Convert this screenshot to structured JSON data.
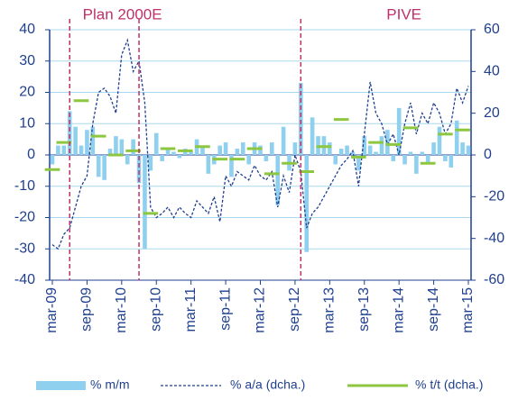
{
  "chart_data": {
    "type": "bar-line",
    "categories": [
      "mar-09",
      null,
      null,
      null,
      null,
      null,
      "sep-09",
      null,
      null,
      null,
      null,
      null,
      "mar-10",
      null,
      null,
      null,
      null,
      null,
      "sep-10",
      null,
      null,
      null,
      null,
      null,
      "mar-11",
      null,
      null,
      null,
      null,
      null,
      "sep-11",
      null,
      null,
      null,
      null,
      null,
      "mar-12",
      null,
      null,
      null,
      null,
      null,
      "sep-12",
      null,
      null,
      null,
      null,
      null,
      "mar-13",
      null,
      null,
      null,
      null,
      null,
      "sep-13",
      null,
      null,
      null,
      null,
      null,
      "mar-14",
      null,
      null,
      null,
      null,
      null,
      "sep-14",
      null,
      null,
      null,
      null,
      null,
      "mar-15"
    ],
    "series": [
      {
        "name": "% m/m",
        "kind": "bar",
        "color": "#8fd0ee",
        "values": [
          -3,
          3,
          3,
          14,
          9,
          3,
          8,
          9,
          -7,
          -8,
          2,
          6,
          5,
          -3,
          5,
          -9,
          -30,
          -5,
          7,
          -2,
          2,
          1,
          -1,
          2,
          1,
          5,
          3,
          -6,
          -3,
          3,
          4,
          -7,
          2,
          4,
          -3,
          4,
          3,
          -2,
          4,
          -16,
          9,
          -5,
          4,
          23,
          -31,
          12,
          6,
          6,
          4,
          -3,
          2,
          3,
          1,
          -5,
          6,
          3,
          1,
          6,
          8,
          -2,
          15,
          -3,
          1,
          -6,
          1,
          -3,
          4,
          9,
          -2,
          -4,
          11,
          4,
          3
        ]
      },
      {
        "name": "% a/a (dcha.)",
        "kind": "line",
        "axis": "y2",
        "color": "#1f3f8f",
        "values": [
          -43,
          -45,
          -38,
          -35,
          -25,
          -15,
          -10,
          15,
          30,
          32,
          28,
          20,
          48,
          55,
          40,
          45,
          25,
          -25,
          -30,
          -28,
          -25,
          -30,
          -25,
          -28,
          -30,
          -22,
          -25,
          -28,
          -20,
          -32,
          -10,
          -15,
          -8,
          -10,
          -12,
          -5,
          -10,
          -12,
          -8,
          -25,
          -10,
          -18,
          0,
          -8,
          -35,
          -28,
          -25,
          -20,
          -15,
          -10,
          -5,
          -2,
          2,
          -15,
          10,
          35,
          20,
          15,
          5,
          10,
          0,
          15,
          25,
          10,
          20,
          15,
          25,
          20,
          10,
          15,
          32,
          25,
          33
        ]
      },
      {
        "name": "% t/t (dcha.)",
        "kind": "step",
        "axis": "y2",
        "color": "#8dc63f",
        "values": [
          -7,
          null,
          6,
          null,
          null,
          26,
          null,
          null,
          9,
          null,
          null,
          0,
          null,
          null,
          2,
          null,
          null,
          -28,
          null,
          null,
          3,
          null,
          null,
          2,
          null,
          null,
          4,
          null,
          null,
          -2,
          null,
          null,
          -2,
          null,
          null,
          3,
          null,
          null,
          -9,
          null,
          null,
          -4,
          null,
          null,
          -8,
          null,
          null,
          4,
          null,
          null,
          17,
          null,
          null,
          -1,
          null,
          null,
          6,
          null,
          null,
          5,
          null,
          null,
          13,
          null,
          null,
          -4,
          null,
          null,
          10,
          null,
          null,
          12,
          null
        ]
      }
    ],
    "ylim": [
      -40,
      40
    ],
    "yticks": [
      -40,
      -30,
      -20,
      -10,
      0,
      10,
      20,
      30,
      40
    ],
    "y2lim": [
      -60,
      60
    ],
    "y2ticks": [
      -60,
      -40,
      -20,
      0,
      20,
      40,
      60
    ],
    "grid": true,
    "annotations": [
      {
        "text": "Plan 2000E",
        "from": 3,
        "to": 15
      },
      {
        "text": "PIVE",
        "from": 43
      }
    ]
  }
}
